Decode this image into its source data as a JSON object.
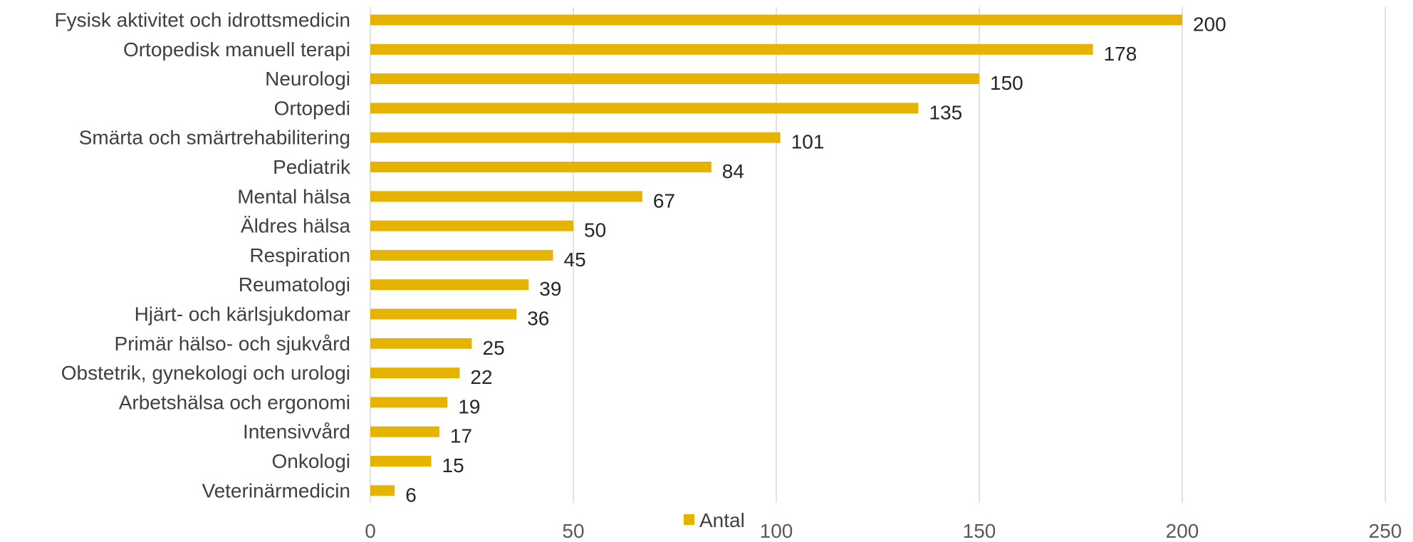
{
  "chart_data": {
    "type": "bar",
    "orientation": "horizontal",
    "categories": [
      "Fysisk aktivitet och idrottsmedicin",
      "Ortopedisk manuell terapi",
      "Neurologi",
      "Ortopedi",
      "Smärta och smärtrehabilitering",
      "Pediatrik",
      "Mental hälsa",
      "Äldres hälsa",
      "Respiration",
      "Reumatologi",
      "Hjärt- och kärlsjukdomar",
      "Primär hälso- och sjukvård",
      "Obstetrik, gynekologi och urologi",
      "Arbetshälsa och ergonomi",
      "Intensivvård",
      "Onkologi",
      "Veterinärmedicin"
    ],
    "series": [
      {
        "name": "Antal",
        "color": "#E6B400",
        "values": [
          200,
          178,
          150,
          135,
          101,
          84,
          67,
          50,
          45,
          39,
          36,
          25,
          22,
          19,
          17,
          15,
          6
        ]
      }
    ],
    "xlim": [
      0,
      250
    ],
    "xticks": [
      "0",
      "50",
      "100",
      "150",
      "200",
      "250"
    ],
    "xtick_values": [
      0,
      50,
      100,
      150,
      200,
      250
    ],
    "grid": true,
    "data_labels": true,
    "legend": {
      "position": "bottom",
      "entries": [
        "Antal"
      ]
    }
  }
}
